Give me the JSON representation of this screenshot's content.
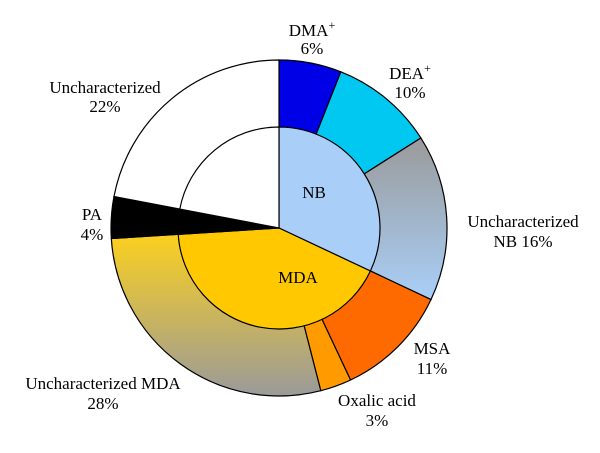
{
  "chart_data": {
    "type": "pie",
    "title": "",
    "outer_ring": [
      {
        "label": "DMA",
        "superscript": "+",
        "value": 6,
        "value_label": "6%",
        "color": "#0000e6",
        "gradient": null
      },
      {
        "label": "DEA",
        "superscript": "+",
        "value": 10,
        "value_label": "10%",
        "color": "#00c8f0",
        "gradient": null
      },
      {
        "label": "Uncharacterized NB 16%",
        "superscript": "",
        "value": 16,
        "value_label": "",
        "color": "#a0c8f0",
        "gradient": [
          "#9a9a9a",
          "#a9cff8"
        ]
      },
      {
        "label": "MSA",
        "superscript": "",
        "value": 11,
        "value_label": "11%",
        "color": "#ff6a00",
        "gradient": null
      },
      {
        "label": "Oxalic acid",
        "superscript": "",
        "value": 3,
        "value_label": "3%",
        "color": "#ff9a00",
        "gradient": null
      },
      {
        "label": "Uncharacterized MDA",
        "superscript": "",
        "value": 28,
        "value_label": "28%",
        "color": "#ffc800",
        "gradient": [
          "#ffd21a",
          "#9a9a9a"
        ]
      },
      {
        "label": "PA",
        "superscript": "",
        "value": 4,
        "value_label": "4%",
        "color": "#000000",
        "gradient": null
      },
      {
        "label": "Uncharacterized",
        "superscript": "",
        "value": 22,
        "value_label": "22%",
        "color": "#ffffff",
        "gradient": null
      }
    ],
    "inner_ring": [
      {
        "label": "NB",
        "value": 32,
        "color": "#a9cff8"
      },
      {
        "label": "MDA",
        "value": 42,
        "color": "#ffc800"
      },
      {
        "label": "",
        "value": 4,
        "color": "#000000"
      },
      {
        "label": "",
        "value": 22,
        "color": "#ffffff"
      }
    ],
    "colors": {
      "stroke": "#000000"
    }
  }
}
